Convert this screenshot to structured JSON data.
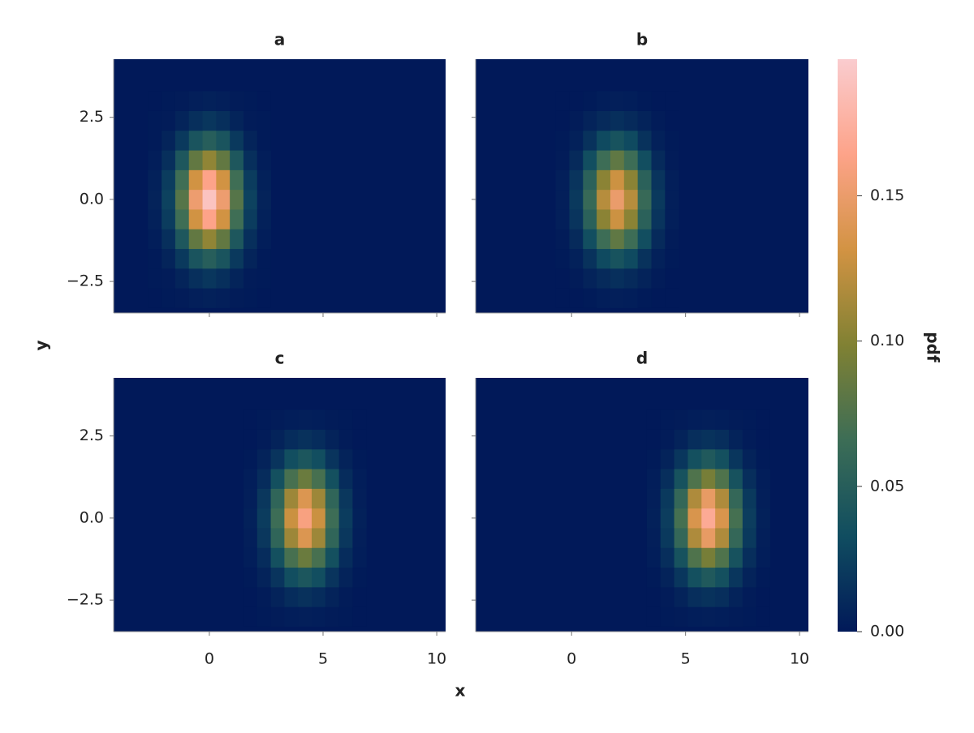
{
  "chart_data": {
    "type": "heatmap",
    "xlabel": "x",
    "ylabel": "y",
    "xlim": [
      -4.21,
      10.39
    ],
    "xticks": [
      0,
      5,
      10
    ],
    "ylim": [
      -3.46,
      4.27
    ],
    "yticks": [
      {
        "value": -2.5,
        "label": "−2.5"
      },
      {
        "value": 0,
        "label": "0.0"
      },
      {
        "value": 2.5,
        "label": "2.5"
      }
    ],
    "colorbar": {
      "label": "pdf",
      "lim": [
        0,
        0.197
      ],
      "ticks": [
        {
          "value": 0,
          "label": "0.00"
        },
        {
          "value": 0.05,
          "label": "0.05"
        },
        {
          "value": 0.1,
          "label": "0.10"
        },
        {
          "value": 0.15,
          "label": "0.15"
        }
      ],
      "colors": [
        "#011959",
        "#104d60",
        "#3c6d56",
        "#808133",
        "#d29343",
        "#fda389",
        "#facccf"
      ]
    },
    "panels": [
      {
        "title": "a",
        "x_edges": [
          -2.7,
          -2.1,
          -1.5,
          -0.9,
          -0.3,
          0.3,
          0.9,
          1.5,
          2.1,
          2.7
        ],
        "y_edges": [
          -3.3,
          -2.7,
          -2.1,
          -1.5,
          -0.9,
          -0.3,
          0.3,
          0.9,
          1.5,
          2.1,
          2.7,
          3.3
        ],
        "values": [
          [
            0,
            0.001,
            0.002,
            0.004,
            0.005,
            0.004,
            0.002,
            0.001,
            0
          ],
          [
            0.001,
            0.002,
            0.007,
            0.014,
            0.018,
            0.014,
            0.007,
            0.002,
            0.001
          ],
          [
            0.001,
            0.007,
            0.02,
            0.04,
            0.05,
            0.04,
            0.02,
            0.007,
            0.001
          ],
          [
            0.003,
            0.014,
            0.043,
            0.084,
            0.105,
            0.084,
            0.043,
            0.014,
            0.003
          ],
          [
            0.005,
            0.022,
            0.067,
            0.131,
            0.164,
            0.131,
            0.067,
            0.022,
            0.005
          ],
          [
            0.006,
            0.026,
            0.078,
            0.152,
            0.19,
            0.152,
            0.078,
            0.026,
            0.006
          ],
          [
            0.005,
            0.022,
            0.067,
            0.131,
            0.164,
            0.131,
            0.067,
            0.022,
            0.005
          ],
          [
            0.003,
            0.014,
            0.043,
            0.084,
            0.105,
            0.084,
            0.043,
            0.014,
            0.003
          ],
          [
            0.001,
            0.007,
            0.02,
            0.04,
            0.05,
            0.04,
            0.02,
            0.007,
            0.001
          ],
          [
            0.001,
            0.002,
            0.007,
            0.014,
            0.018,
            0.014,
            0.007,
            0.002,
            0.001
          ],
          [
            0,
            0.001,
            0.002,
            0.004,
            0.005,
            0.004,
            0.002,
            0.001,
            0
          ]
        ]
      },
      {
        "title": "b",
        "x_edges": [
          -0.7,
          -0.1,
          0.5,
          1.1,
          1.7,
          2.3,
          2.9,
          3.5,
          4.1,
          4.7
        ],
        "y_edges": [
          -3.3,
          -2.7,
          -2.1,
          -1.5,
          -0.9,
          -0.3,
          0.3,
          0.9,
          1.5,
          2.1,
          2.7,
          3.3
        ],
        "values": [
          [
            0,
            0,
            0.001,
            0.003,
            0.004,
            0.003,
            0.001,
            0,
            0
          ],
          [
            0,
            0.002,
            0.006,
            0.011,
            0.014,
            0.011,
            0.006,
            0.002,
            0
          ],
          [
            0.001,
            0.005,
            0.016,
            0.031,
            0.039,
            0.031,
            0.016,
            0.005,
            0.001
          ],
          [
            0.002,
            0.011,
            0.034,
            0.066,
            0.083,
            0.066,
            0.034,
            0.011,
            0.002
          ],
          [
            0.004,
            0.017,
            0.053,
            0.103,
            0.129,
            0.103,
            0.053,
            0.017,
            0.004
          ],
          [
            0.004,
            0.02,
            0.062,
            0.12,
            0.15,
            0.12,
            0.062,
            0.02,
            0.004
          ],
          [
            0.004,
            0.017,
            0.053,
            0.103,
            0.129,
            0.103,
            0.053,
            0.017,
            0.004
          ],
          [
            0.002,
            0.011,
            0.034,
            0.066,
            0.083,
            0.066,
            0.034,
            0.011,
            0.002
          ],
          [
            0.001,
            0.005,
            0.016,
            0.031,
            0.039,
            0.031,
            0.016,
            0.005,
            0.001
          ],
          [
            0,
            0.002,
            0.006,
            0.011,
            0.014,
            0.011,
            0.006,
            0.002,
            0
          ],
          [
            0,
            0,
            0.001,
            0.003,
            0.004,
            0.003,
            0.001,
            0,
            0
          ]
        ]
      },
      {
        "title": "c",
        "x_edges": [
          1.5,
          2.1,
          2.7,
          3.3,
          3.9,
          4.5,
          5.1,
          5.7,
          6.3,
          6.9
        ],
        "y_edges": [
          -3.3,
          -2.7,
          -2.1,
          -1.5,
          -0.9,
          -0.3,
          0.3,
          0.9,
          1.5,
          2.1,
          2.7,
          3.3
        ],
        "values": [
          [
            0,
            0.001,
            0.002,
            0.003,
            0.004,
            0.003,
            0.002,
            0.001,
            0
          ],
          [
            0,
            0.002,
            0.006,
            0.012,
            0.015,
            0.012,
            0.006,
            0.002,
            0
          ],
          [
            0.001,
            0.006,
            0.017,
            0.034,
            0.042,
            0.034,
            0.017,
            0.006,
            0.001
          ],
          [
            0.003,
            0.012,
            0.036,
            0.071,
            0.088,
            0.071,
            0.036,
            0.012,
            0.003
          ],
          [
            0.004,
            0.019,
            0.057,
            0.11,
            0.138,
            0.11,
            0.057,
            0.019,
            0.004
          ],
          [
            0.005,
            0.022,
            0.066,
            0.128,
            0.16,
            0.128,
            0.066,
            0.022,
            0.005
          ],
          [
            0.004,
            0.019,
            0.057,
            0.11,
            0.138,
            0.11,
            0.057,
            0.019,
            0.004
          ],
          [
            0.003,
            0.012,
            0.036,
            0.071,
            0.088,
            0.071,
            0.036,
            0.012,
            0.003
          ],
          [
            0.001,
            0.006,
            0.017,
            0.034,
            0.042,
            0.034,
            0.017,
            0.006,
            0.001
          ],
          [
            0,
            0.002,
            0.006,
            0.012,
            0.015,
            0.012,
            0.006,
            0.002,
            0
          ],
          [
            0,
            0.001,
            0.002,
            0.003,
            0.004,
            0.003,
            0.002,
            0.001,
            0
          ]
        ]
      },
      {
        "title": "d",
        "x_edges": [
          3.3,
          3.9,
          4.5,
          5.1,
          5.7,
          6.3,
          6.9,
          7.5,
          8.1,
          8.7
        ],
        "y_edges": [
          -3.3,
          -2.7,
          -2.1,
          -1.5,
          -0.9,
          -0.3,
          0.3,
          0.9,
          1.5,
          2.1,
          2.7,
          3.3
        ],
        "values": [
          [
            0,
            0.001,
            0.002,
            0.003,
            0.004,
            0.003,
            0.002,
            0.001,
            0
          ],
          [
            0,
            0.002,
            0.006,
            0.013,
            0.016,
            0.013,
            0.006,
            0.002,
            0
          ],
          [
            0.001,
            0.006,
            0.018,
            0.036,
            0.045,
            0.036,
            0.018,
            0.006,
            0.001
          ],
          [
            0.003,
            0.013,
            0.038,
            0.075,
            0.094,
            0.075,
            0.038,
            0.013,
            0.003
          ],
          [
            0.004,
            0.02,
            0.06,
            0.117,
            0.147,
            0.117,
            0.06,
            0.02,
            0.004
          ],
          [
            0.005,
            0.023,
            0.07,
            0.136,
            0.17,
            0.136,
            0.07,
            0.023,
            0.005
          ],
          [
            0.004,
            0.02,
            0.06,
            0.117,
            0.147,
            0.117,
            0.06,
            0.02,
            0.004
          ],
          [
            0.003,
            0.013,
            0.038,
            0.075,
            0.094,
            0.075,
            0.038,
            0.013,
            0.003
          ],
          [
            0.001,
            0.006,
            0.018,
            0.036,
            0.045,
            0.036,
            0.018,
            0.006,
            0.001
          ],
          [
            0,
            0.002,
            0.006,
            0.013,
            0.016,
            0.013,
            0.006,
            0.002,
            0
          ],
          [
            0,
            0.001,
            0.002,
            0.003,
            0.004,
            0.003,
            0.002,
            0.001,
            0
          ]
        ]
      }
    ]
  }
}
